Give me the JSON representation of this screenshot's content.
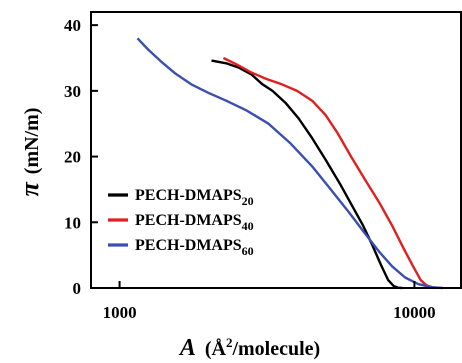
{
  "chart_data": {
    "type": "line",
    "title": "",
    "xlabel": {
      "symbol": "A",
      "unit": "(Å²/molecule)",
      "prefix": "(Å",
      "sup": "2",
      "suffix": "/molecule)"
    },
    "ylabel": {
      "symbol": "π",
      "unit": "(mN/m)"
    },
    "x_scale": "log",
    "xlim": [
      800,
      14500
    ],
    "ylim": [
      0,
      42
    ],
    "x_ticks": [
      {
        "value": 1000,
        "label": "1000"
      },
      {
        "value": 10000,
        "label": "10000"
      }
    ],
    "y_ticks": [
      {
        "value": 0,
        "label": "0"
      },
      {
        "value": 10,
        "label": "10"
      },
      {
        "value": 20,
        "label": "20"
      },
      {
        "value": 30,
        "label": "30"
      },
      {
        "value": 40,
        "label": "40"
      }
    ],
    "grid": false,
    "legend_position": "bottom-left",
    "series": [
      {
        "name": "PECH-DMAPS20",
        "name_base": "PECH-DMAPS",
        "name_sub": "20",
        "color": "#000000",
        "x": [
          2050,
          2300,
          2550,
          2800,
          3050,
          3300,
          3650,
          4050,
          4500,
          5000,
          5600,
          6150,
          6700,
          7200,
          7700,
          8150,
          8500,
          8800,
          9100
        ],
        "y": [
          34.6,
          34.2,
          33.5,
          32.5,
          31.0,
          30.0,
          28.2,
          25.8,
          22.8,
          19.5,
          15.8,
          12.5,
          9.5,
          6.5,
          3.5,
          1.2,
          0.3,
          0.05,
          0
        ]
      },
      {
        "name": "PECH-DMAPS40",
        "name_base": "PECH-DMAPS",
        "name_sub": "40",
        "color": "#e02020",
        "x": [
          2250,
          2500,
          2800,
          3150,
          3550,
          4000,
          4500,
          5000,
          5500,
          6100,
          6800,
          7600,
          8400,
          9200,
          9900,
          10500,
          11000,
          11500,
          12000
        ],
        "y": [
          35.0,
          34.0,
          32.8,
          31.8,
          31.0,
          30.0,
          28.5,
          26.3,
          23.5,
          20.0,
          16.5,
          13.0,
          9.5,
          6.0,
          3.3,
          1.2,
          0.4,
          0.1,
          0
        ]
      },
      {
        "name": "PECH-DMAPS60",
        "name_base": "PECH-DMAPS",
        "name_sub": "60",
        "color": "#3a4fb0",
        "x": [
          1150,
          1250,
          1380,
          1550,
          1750,
          2000,
          2300,
          2700,
          3200,
          3800,
          4500,
          5200,
          6000,
          6800,
          7600,
          8400,
          9300,
          10300,
          11500,
          12500
        ],
        "y": [
          38.0,
          36.3,
          34.5,
          32.6,
          31.0,
          29.7,
          28.5,
          27.0,
          25.0,
          22.0,
          18.5,
          15.0,
          11.5,
          8.3,
          5.5,
          3.3,
          1.6,
          0.6,
          0.1,
          0
        ]
      }
    ]
  }
}
